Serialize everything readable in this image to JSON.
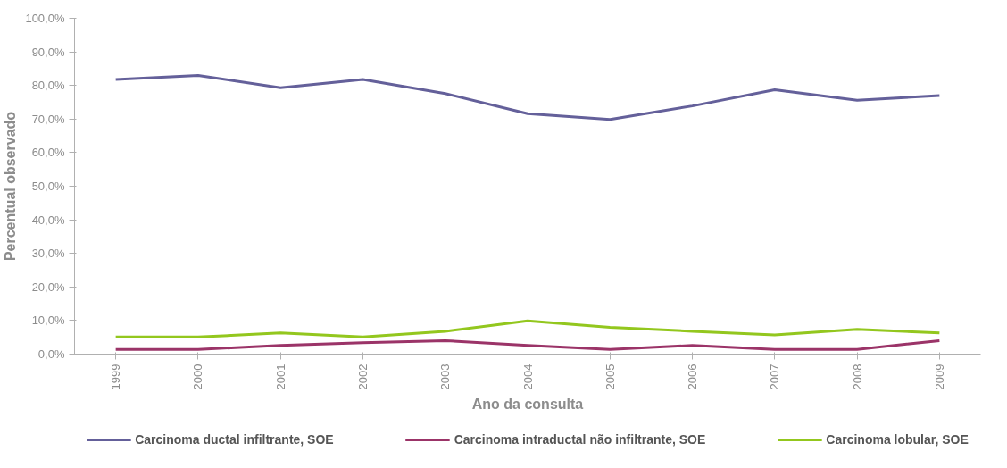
{
  "chart_data": {
    "type": "line",
    "xlabel": "Ano da consulta",
    "ylabel": "Percentual observado",
    "categories": [
      "1999",
      "2000",
      "2001",
      "2002",
      "2003",
      "2004",
      "2005",
      "2006",
      "2007",
      "2008",
      "2009"
    ],
    "series": [
      {
        "name": "Carcinoma ductal infiltrante, SOE",
        "color": "#64609a",
        "values": [
          81.8,
          83.0,
          79.3,
          81.8,
          77.6,
          71.6,
          69.9,
          73.9,
          78.7,
          75.6,
          77.0
        ]
      },
      {
        "name": "Carcinoma intraductal não infiltrante, SOE",
        "color": "#9b3468",
        "values": [
          1.4,
          1.4,
          2.6,
          3.4,
          4.0,
          2.6,
          1.4,
          2.6,
          1.4,
          1.4,
          4.0
        ]
      },
      {
        "name": "Carcinoma lobular, SOE",
        "color": "#93c71e",
        "values": [
          5.1,
          5.1,
          6.3,
          5.1,
          6.8,
          9.9,
          8.0,
          6.8,
          5.7,
          7.4,
          6.3
        ]
      }
    ],
    "ylim": [
      0,
      100
    ],
    "yticks": [
      {
        "value": 0,
        "label": "0,0%"
      },
      {
        "value": 10,
        "label": "10,0%"
      },
      {
        "value": 20,
        "label": "20,0%"
      },
      {
        "value": 30,
        "label": "30,0%"
      },
      {
        "value": 40,
        "label": "40,0%"
      },
      {
        "value": 50,
        "label": "50,0%"
      },
      {
        "value": 60,
        "label": "60,0%"
      },
      {
        "value": 70,
        "label": "70,0%"
      },
      {
        "value": 80,
        "label": "80,0%"
      },
      {
        "value": 90,
        "label": "90,0%"
      },
      {
        "value": 100,
        "label": "100,0%"
      }
    ],
    "grid": false,
    "legend": "bottom",
    "marker": "none",
    "line_style": "solid"
  }
}
